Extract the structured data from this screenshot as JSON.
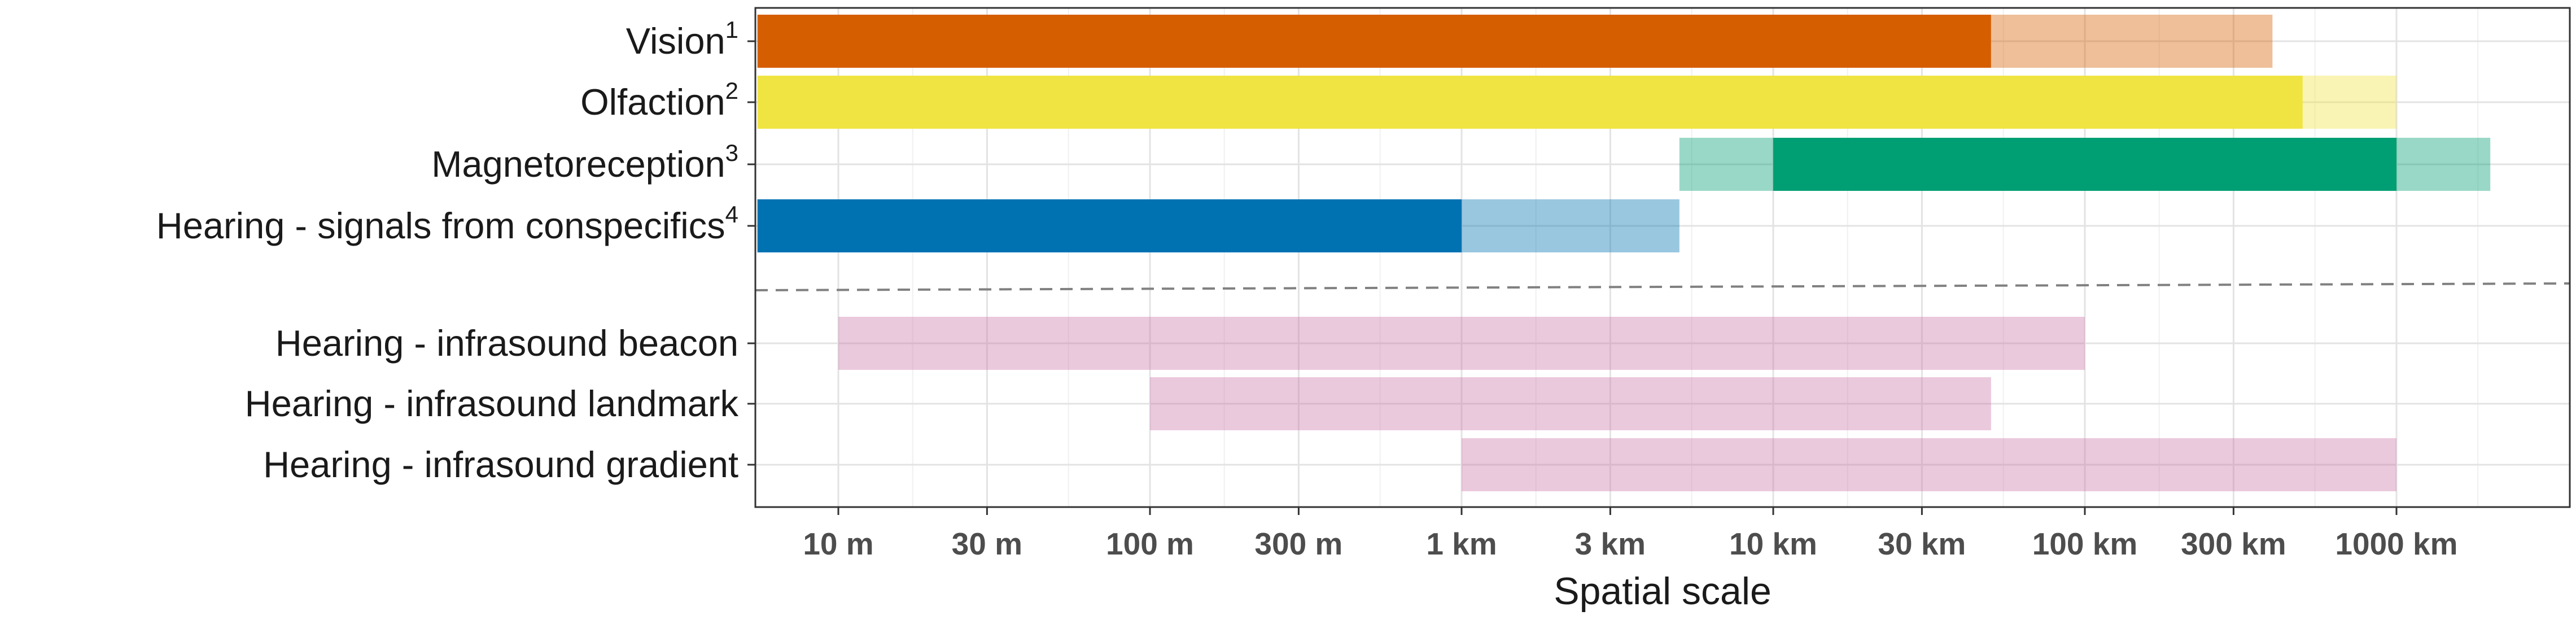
{
  "chart_data": {
    "type": "range-bar",
    "x_scale": "log10",
    "x_unit": "m",
    "xlim": [
      5.5,
      4600000
    ],
    "xlabel": "Spatial scale",
    "grid": true,
    "x_ticks": [
      {
        "value": 10,
        "label": "10 m"
      },
      {
        "value": 30,
        "label": "30 m"
      },
      {
        "value": 100,
        "label": "100 m"
      },
      {
        "value": 300,
        "label": "300 m"
      },
      {
        "value": 1000,
        "label": "1 km"
      },
      {
        "value": 3000,
        "label": "3 km"
      },
      {
        "value": 10000,
        "label": "10 km"
      },
      {
        "value": 30000,
        "label": "30 km"
      },
      {
        "value": 100000,
        "label": "100 km"
      },
      {
        "value": 300000,
        "label": "300 km"
      },
      {
        "value": 1000000,
        "label": "1000 km"
      }
    ],
    "rows": [
      {
        "label": "Vision",
        "superscript": "1",
        "color": "#D55E00",
        "segments": [
          {
            "start": 5.5,
            "end": 50000,
            "opacity": 1.0
          },
          {
            "start": 50000,
            "end": 400000,
            "opacity": 0.4
          }
        ]
      },
      {
        "label": "Olfaction",
        "superscript": "2",
        "color": "#F0E442",
        "segments": [
          {
            "start": 5.5,
            "end": 500000,
            "opacity": 1.0
          },
          {
            "start": 500000,
            "end": 1000000,
            "opacity": 0.4
          }
        ]
      },
      {
        "label": "Magnetoreception",
        "superscript": "3",
        "color": "#009E73",
        "segments": [
          {
            "start": 5000,
            "end": 10000,
            "opacity": 0.4
          },
          {
            "start": 10000,
            "end": 1000000,
            "opacity": 1.0
          },
          {
            "start": 1000000,
            "end": 2000000,
            "opacity": 0.4
          }
        ]
      },
      {
        "label": "Hearing - signals from conspecifics",
        "superscript": "4",
        "color": "#0072B2",
        "segments": [
          {
            "start": 5.5,
            "end": 1000,
            "opacity": 1.0
          },
          {
            "start": 1000,
            "end": 5000,
            "opacity": 0.4
          }
        ]
      },
      {
        "label": "Hearing - infrasound beacon",
        "superscript": "",
        "color": "#CC79A7",
        "segments": [
          {
            "start": 10,
            "end": 100000,
            "opacity": 0.4
          }
        ]
      },
      {
        "label": "Hearing - infrasound landmark",
        "superscript": "",
        "color": "#CC79A7",
        "segments": [
          {
            "start": 100,
            "end": 50000,
            "opacity": 0.4
          }
        ]
      },
      {
        "label": "Hearing - infrasound gradient",
        "superscript": "",
        "color": "#CC79A7",
        "segments": [
          {
            "start": 1000,
            "end": 1000000,
            "opacity": 0.4
          }
        ]
      }
    ],
    "divider": {
      "after_row": 3,
      "style": "dashed",
      "color": "#808080"
    }
  }
}
